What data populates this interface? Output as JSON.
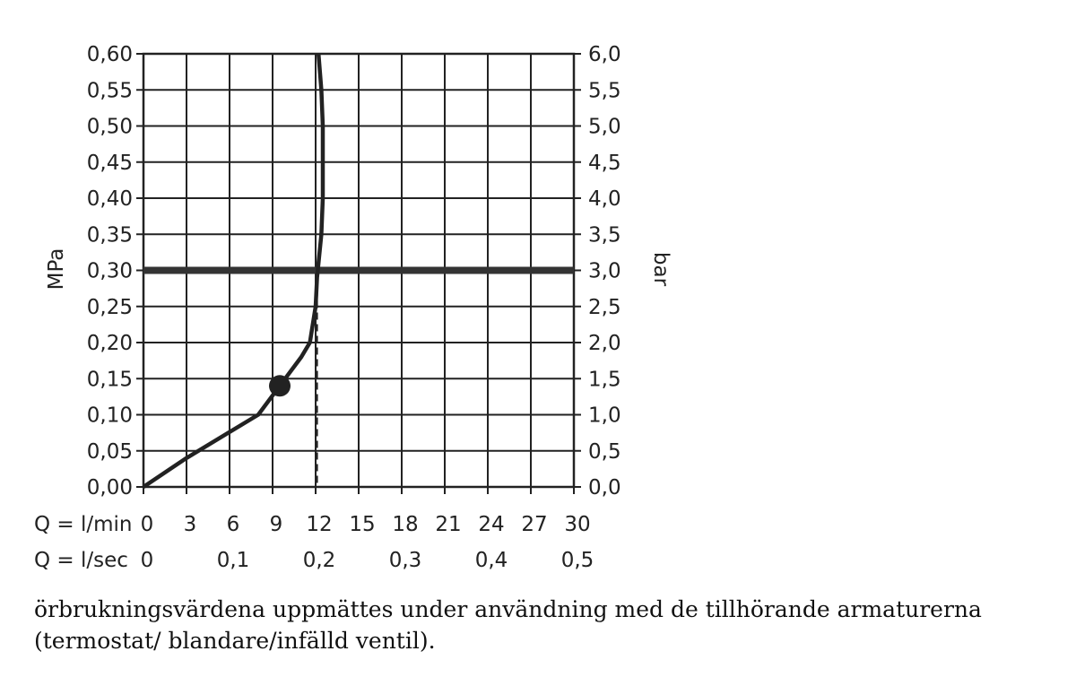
{
  "chart_data": {
    "type": "line",
    "xlabel": "",
    "ylabel": "MPa",
    "y2label": "bar",
    "x_axis_rows": [
      {
        "prefix": "Q = l/min",
        "ticks": [
          "0",
          "3",
          "6",
          "9",
          "12",
          "15",
          "18",
          "21",
          "24",
          "27",
          "30"
        ],
        "values": [
          0,
          3,
          6,
          9,
          12,
          15,
          18,
          21,
          24,
          27,
          30
        ]
      },
      {
        "prefix": "Q = l/sec",
        "ticks": [
          "0",
          "0,1",
          "0,2",
          "0,3",
          "0,4",
          "0,5"
        ],
        "values": [
          0,
          6,
          12,
          18,
          24,
          30
        ]
      }
    ],
    "y_ticks": [
      "0,00",
      "0,05",
      "0,10",
      "0,15",
      "0,20",
      "0,25",
      "0,30",
      "0,35",
      "0,40",
      "0,45",
      "0,50",
      "0,55",
      "0,60"
    ],
    "y2_ticks": [
      "0,0",
      "0,5",
      "1,0",
      "1,5",
      "2,0",
      "2,5",
      "3,0",
      "3,5",
      "4,0",
      "4,5",
      "5,0",
      "5,5",
      "6,0"
    ],
    "xlim": [
      0,
      30
    ],
    "ylim": [
      0,
      0.6
    ],
    "grid": true,
    "series": [
      {
        "name": "",
        "x": [
          0,
          3,
          8,
          9.5,
          11,
          11.6,
          12.0,
          12.1,
          12.4,
          12.5,
          12.5,
          12.4,
          12.2
        ],
        "y": [
          0,
          0.04,
          0.1,
          0.14,
          0.18,
          0.2,
          0.25,
          0.29,
          0.35,
          0.4,
          0.5,
          0.55,
          0.6
        ],
        "color": "#222222"
      }
    ],
    "reference_line": {
      "y": 0.3,
      "color": "#333333"
    },
    "marker": {
      "x": 9.5,
      "y": 0.14,
      "color": "#222222"
    },
    "dashed_drop": {
      "x": 12.1,
      "y_from": 0.29,
      "y_to": 0
    }
  },
  "caption": "örbrukningsvärdena uppmättes under användning med de tillhörande armaturerna (termostat/ blandare/infälld ventil)."
}
